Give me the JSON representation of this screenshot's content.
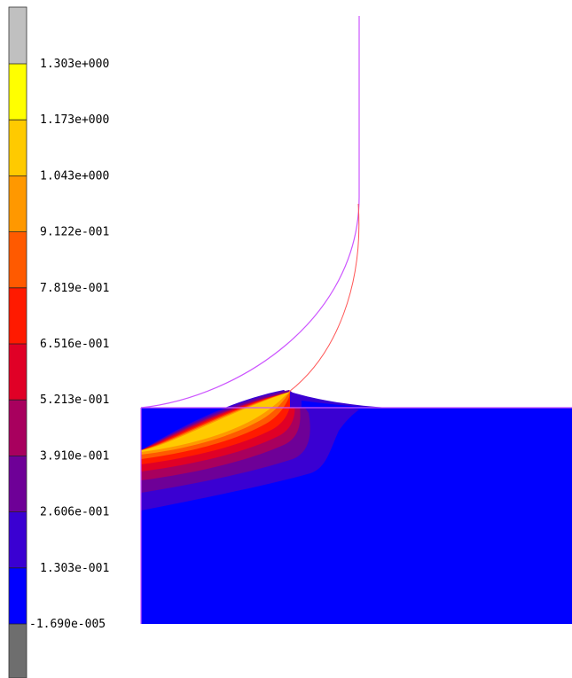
{
  "chart_data": {
    "type": "heatmap",
    "title": "",
    "colorbar": {
      "tick_labels": [
        "1.303e+000",
        "1.173e+000",
        "1.043e+000",
        "9.122e-001",
        "7.819e-001",
        "6.516e-001",
        "5.213e-001",
        "3.910e-001",
        "2.606e-001",
        "1.303e-001",
        "-1.690e-005"
      ],
      "levels": [
        {
          "from": -1.69e-05,
          "to": 0.1303,
          "color": "#0000ff"
        },
        {
          "from": 0.1303,
          "to": 0.2606,
          "color": "#3a00d2"
        },
        {
          "from": 0.2606,
          "to": 0.391,
          "color": "#6e0097"
        },
        {
          "from": 0.391,
          "to": 0.5213,
          "color": "#a8005e"
        },
        {
          "from": 0.5213,
          "to": 0.6516,
          "color": "#e00026"
        },
        {
          "from": 0.6516,
          "to": 0.7819,
          "color": "#ff1a00"
        },
        {
          "from": 0.7819,
          "to": 0.9122,
          "color": "#ff5a00"
        },
        {
          "from": 0.9122,
          "to": 1.043,
          "color": "#ff9800"
        },
        {
          "from": 1.043,
          "to": 1.173,
          "color": "#ffca00"
        },
        {
          "from": 1.173,
          "to": 1.303,
          "color": "#ffff00"
        }
      ],
      "above_max_color": "#c0c0c0",
      "below_min_color": "#6e6e6e"
    },
    "domain_fill_color": "#0000ff",
    "outline_color": "#cc55ff",
    "deformed_outline_color": "#ff5555"
  }
}
